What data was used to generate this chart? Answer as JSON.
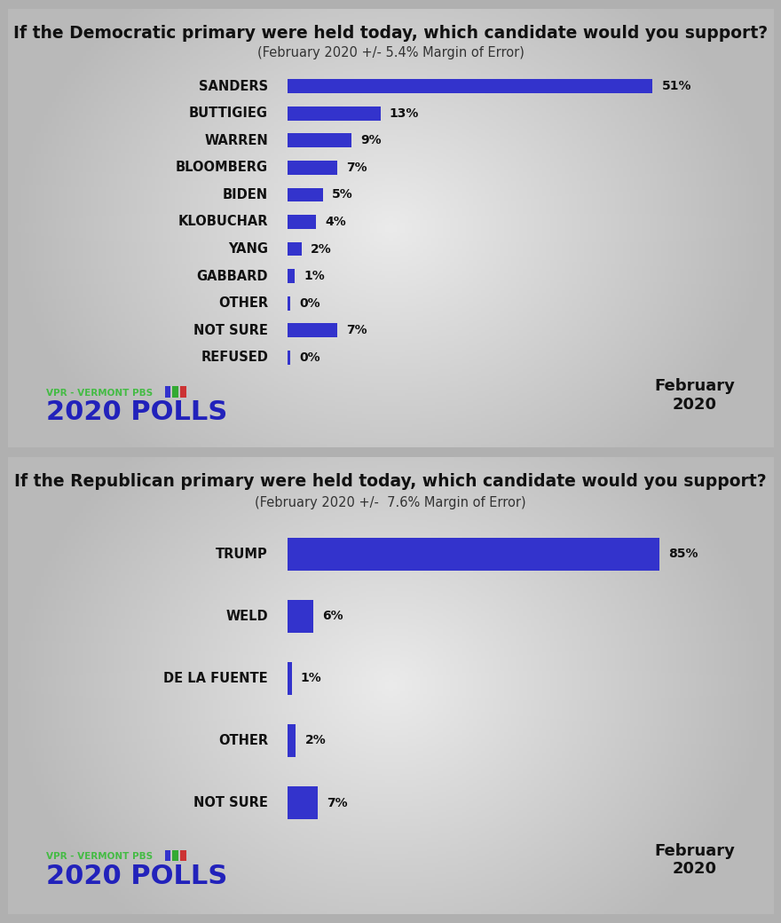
{
  "dem_title": "If the Democratic primary were held today, which candidate would you support?",
  "dem_subtitle": "(February 2020 +/- 5.4% Margin of Error)",
  "dem_candidates": [
    "SANDERS",
    "BUTTIGIEG",
    "WARREN",
    "BLOOMBERG",
    "BIDEN",
    "KLOBUCHAR",
    "YANG",
    "GABBARD",
    "OTHER",
    "NOT SURE",
    "REFUSED"
  ],
  "dem_values": [
    51,
    13,
    9,
    7,
    5,
    4,
    2,
    1,
    0,
    7,
    0
  ],
  "rep_title": "If the Republican primary were held today, which candidate would you support?",
  "rep_subtitle": "(February 2020 +/-  7.6% Margin of Error)",
  "rep_candidates": [
    "TRUMP",
    "WELD",
    "DE LA FUENTE",
    "OTHER",
    "NOT SURE"
  ],
  "rep_values": [
    85,
    6,
    1,
    2,
    7
  ],
  "bar_color": "#3333cc",
  "title_fontsize": 13.5,
  "subtitle_fontsize": 10.5,
  "label_fontsize": 10.5,
  "value_fontsize": 10,
  "logo_small_text": "VPR - VERMONT PBS",
  "logo_large_text": "2020 POLLS",
  "logo_small_color": "#44bb44",
  "logo_large_color": "#2222bb",
  "date_text": "February\n2020",
  "date_fontsize": 13,
  "panel_bg": "#d8d8d8",
  "outer_bg": "#aaaaaa"
}
